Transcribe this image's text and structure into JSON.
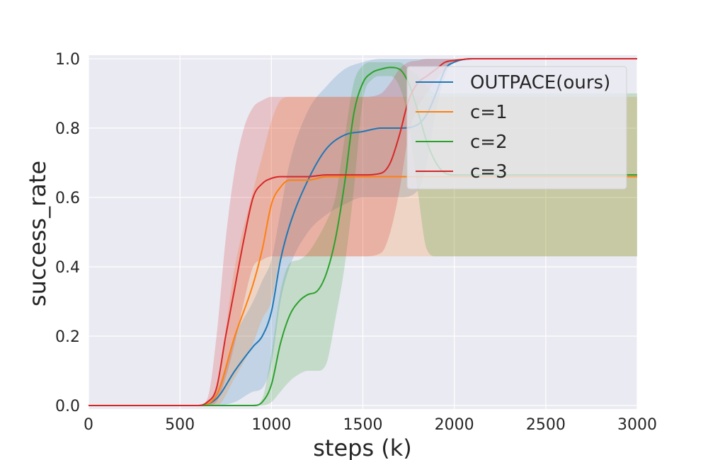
{
  "chart_data": {
    "type": "line",
    "title": "",
    "xlabel": "steps (k)",
    "ylabel": "success_rate",
    "xlim": [
      0,
      3000
    ],
    "ylim": [
      0,
      1.0
    ],
    "xticks": [
      0,
      500,
      1000,
      1500,
      2000,
      2500,
      3000
    ],
    "xtick_labels": [
      "0",
      "500",
      "1000",
      "1500",
      "2000",
      "2500",
      "3000"
    ],
    "yticks": [
      0.0,
      0.2,
      0.4,
      0.6,
      0.8,
      1.0
    ],
    "ytick_labels": [
      "0.0",
      "0.2",
      "0.4",
      "0.6",
      "0.8",
      "1.0"
    ],
    "grid": true,
    "legend_position": "top-right",
    "series": [
      {
        "name": "OUTPACE(ours)",
        "color": "#1f77b4",
        "x": [
          0,
          600,
          700,
          800,
          900,
          950,
          1000,
          1050,
          1100,
          1200,
          1300,
          1400,
          1500,
          1600,
          1700,
          1800,
          1850,
          1900,
          1950,
          2000,
          2100,
          2500,
          3000
        ],
        "y": [
          0,
          0,
          0.02,
          0.1,
          0.17,
          0.2,
          0.27,
          0.42,
          0.52,
          0.65,
          0.74,
          0.78,
          0.79,
          0.8,
          0.8,
          0.81,
          0.84,
          0.9,
          0.97,
          0.99,
          1.0,
          1.0,
          1.0
        ],
        "y_lower": [
          0,
          0,
          0,
          0.01,
          0.04,
          0.05,
          0.12,
          0.3,
          0.4,
          0.5,
          0.55,
          0.58,
          0.6,
          0.6,
          0.6,
          0.62,
          0.7,
          0.85,
          0.95,
          0.99,
          1.0,
          1.0,
          1.0
        ],
        "y_upper": [
          0,
          0,
          0.04,
          0.2,
          0.3,
          0.36,
          0.42,
          0.56,
          0.7,
          0.85,
          0.92,
          0.97,
          0.99,
          1.0,
          1.0,
          1.0,
          1.0,
          1.0,
          1.0,
          1.0,
          1.0,
          1.0,
          1.0
        ]
      },
      {
        "name": "c=1",
        "color": "#ff7f0e",
        "x": [
          0,
          600,
          700,
          800,
          900,
          950,
          1000,
          1050,
          1100,
          1200,
          1300,
          1400,
          1500,
          1800,
          2000,
          2500,
          3000
        ],
        "y": [
          0,
          0,
          0.03,
          0.2,
          0.35,
          0.45,
          0.58,
          0.63,
          0.65,
          0.65,
          0.66,
          0.66,
          0.66,
          0.66,
          0.66,
          0.66,
          0.66
        ],
        "y_lower": [
          0,
          0,
          0,
          0.08,
          0.18,
          0.25,
          0.3,
          0.42,
          0.43,
          0.43,
          0.43,
          0.43,
          0.43,
          0.43,
          0.43,
          0.43,
          0.43
        ],
        "y_upper": [
          0,
          0,
          0.06,
          0.4,
          0.62,
          0.72,
          0.82,
          0.88,
          0.89,
          0.89,
          0.89,
          0.89,
          0.89,
          0.89,
          0.89,
          0.89,
          0.89
        ]
      },
      {
        "name": "c=2",
        "color": "#2ca02c",
        "x": [
          0,
          900,
          950,
          1000,
          1050,
          1100,
          1150,
          1200,
          1250,
          1300,
          1350,
          1400,
          1450,
          1500,
          1550,
          1600,
          1650,
          1700,
          1750,
          1800,
          1850,
          1900,
          1950,
          2000,
          2100,
          2500,
          3000
        ],
        "y": [
          0,
          0,
          0.01,
          0.06,
          0.18,
          0.26,
          0.3,
          0.32,
          0.33,
          0.38,
          0.48,
          0.64,
          0.84,
          0.93,
          0.96,
          0.97,
          0.975,
          0.97,
          0.93,
          0.85,
          0.76,
          0.7,
          0.67,
          0.665,
          0.665,
          0.665,
          0.665
        ],
        "y_lower": [
          0,
          0,
          0,
          0.01,
          0.04,
          0.07,
          0.09,
          0.1,
          0.1,
          0.12,
          0.25,
          0.4,
          0.62,
          0.88,
          0.94,
          0.95,
          0.95,
          0.92,
          0.82,
          0.62,
          0.45,
          0.43,
          0.43,
          0.43,
          0.43,
          0.43,
          0.43
        ],
        "y_upper": [
          0,
          0,
          0.02,
          0.15,
          0.33,
          0.41,
          0.42,
          0.44,
          0.48,
          0.53,
          0.6,
          0.77,
          0.93,
          0.98,
          0.99,
          0.99,
          0.99,
          0.99,
          0.97,
          0.95,
          0.92,
          0.9,
          0.9,
          0.9,
          0.9,
          0.9,
          0.9
        ]
      },
      {
        "name": "c=3",
        "color": "#d62728",
        "x": [
          0,
          600,
          650,
          700,
          750,
          800,
          850,
          900,
          950,
          1000,
          1050,
          1100,
          1200,
          1300,
          1400,
          1500,
          1600,
          1650,
          1700,
          1750,
          1800,
          1850,
          1900,
          1950,
          2000,
          2100,
          2500,
          3000
        ],
        "y": [
          0,
          0,
          0.01,
          0.05,
          0.2,
          0.34,
          0.48,
          0.6,
          0.64,
          0.655,
          0.66,
          0.66,
          0.66,
          0.665,
          0.665,
          0.665,
          0.67,
          0.7,
          0.78,
          0.88,
          0.93,
          0.95,
          0.97,
          0.99,
          0.995,
          1.0,
          1.0,
          1.0
        ],
        "y_lower": [
          0,
          0,
          0,
          0.01,
          0.08,
          0.18,
          0.3,
          0.4,
          0.42,
          0.43,
          0.43,
          0.43,
          0.43,
          0.43,
          0.43,
          0.43,
          0.44,
          0.5,
          0.62,
          0.78,
          0.86,
          0.9,
          0.94,
          0.97,
          0.99,
          1.0,
          1.0,
          1.0
        ],
        "y_upper": [
          0,
          0,
          0.02,
          0.2,
          0.48,
          0.68,
          0.8,
          0.86,
          0.88,
          0.89,
          0.89,
          0.89,
          0.89,
          0.89,
          0.89,
          0.89,
          0.9,
          0.93,
          0.97,
          0.99,
          0.995,
          1.0,
          1.0,
          1.0,
          1.0,
          1.0,
          1.0,
          1.0
        ]
      }
    ]
  }
}
